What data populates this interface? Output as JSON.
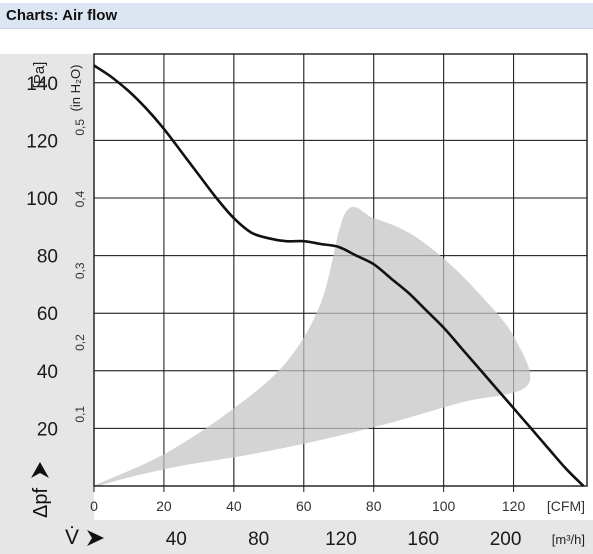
{
  "page": {
    "title": "Charts: Air flow"
  },
  "chart_data": {
    "type": "line",
    "y_primary": {
      "unit": "[Pa]",
      "ticks": [
        20,
        40,
        60,
        80,
        100,
        120,
        140
      ],
      "range": [
        0,
        150
      ]
    },
    "y_secondary": {
      "unit": "(in H₂O)",
      "ticks": [
        0.1,
        0.2,
        0.3,
        0.4,
        0.5
      ],
      "tick_labels": [
        "0,1",
        "0,2",
        "0,3",
        "0,4",
        "0,5"
      ]
    },
    "y_label": "Δpf",
    "x_primary": {
      "unit": "[CFM]",
      "ticks": [
        0,
        20,
        40,
        60,
        80,
        100,
        120
      ],
      "range": [
        0,
        141
      ]
    },
    "x_secondary": {
      "unit": "[m³/h]",
      "ticks": [
        40,
        80,
        120,
        160,
        200
      ]
    },
    "x_label": "V̇",
    "grid": true,
    "series": [
      {
        "x": [
          0,
          5,
          10,
          15,
          20,
          25,
          30,
          35,
          40,
          45,
          50,
          55,
          60,
          65,
          70,
          75,
          80,
          85,
          90,
          95,
          100,
          105,
          110,
          115,
          120,
          125,
          130,
          135,
          140
        ],
        "y": [
          146,
          142,
          137,
          131,
          124,
          116,
          108,
          100,
          93,
          88,
          86,
          85,
          85,
          84,
          83,
          80,
          77,
          72,
          67,
          61,
          55,
          48,
          41,
          34,
          27,
          20,
          13,
          6,
          0
        ]
      }
    ],
    "operating_region": {
      "x": [
        0,
        20,
        40,
        55,
        65,
        72,
        80,
        90,
        100,
        110,
        120,
        124,
        105,
        85,
        65,
        45,
        25,
        10,
        0
      ],
      "y": [
        0,
        11,
        27,
        43,
        64,
        95,
        93,
        88,
        79,
        67,
        52,
        35,
        29,
        22,
        16,
        11,
        7,
        3,
        0
      ]
    }
  }
}
